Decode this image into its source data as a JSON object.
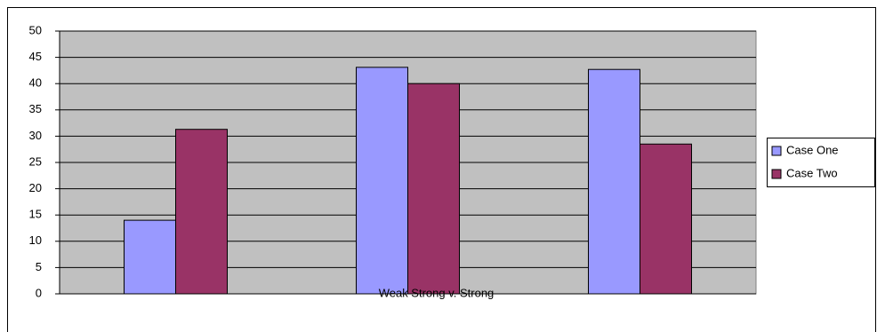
{
  "chart_data": {
    "type": "bar",
    "categories": [
      null,
      "Weak Strong v. Strong",
      null
    ],
    "series": [
      {
        "name": "Case One",
        "color": "#9999ff",
        "values": [
          14,
          43.1,
          42.7
        ]
      },
      {
        "name": "Case Two",
        "color": "#993366",
        "values": [
          31.3,
          40,
          28.5
        ]
      }
    ],
    "ylim": [
      0,
      50
    ],
    "yticks": [
      0,
      5,
      10,
      15,
      20,
      25,
      30,
      35,
      40,
      45,
      50
    ],
    "grid": true,
    "legend": "right"
  }
}
